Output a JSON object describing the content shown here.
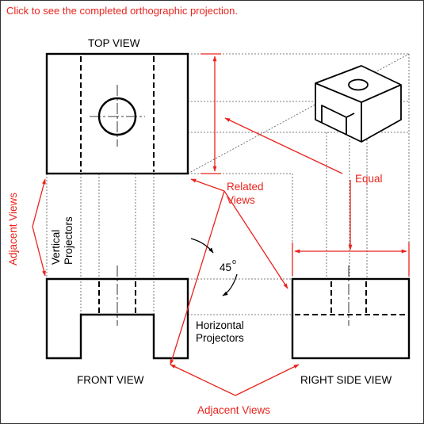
{
  "instruction": "Click to see the completed orthographic projection.",
  "views": {
    "top": "TOP VIEW",
    "front": "FRONT VIEW",
    "right": "RIGHT SIDE VIEW"
  },
  "annotations": {
    "adjacent_views": "Adjacent Views",
    "related_line1": "Related",
    "related_line2": "Views",
    "equal": "Equal",
    "vertical_line1": "Vertical",
    "vertical_line2": "Projectors",
    "horizontal_line1": "Horizontal",
    "horizontal_line2": "Projectors",
    "angle": "45",
    "degree": "o"
  },
  "colors": {
    "annotation": "#e8241d",
    "lines": "#000000"
  }
}
